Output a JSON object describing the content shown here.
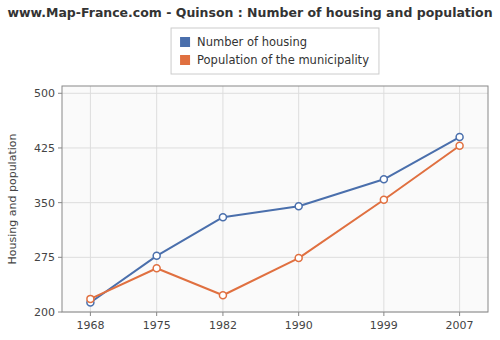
{
  "chart_data": {
    "type": "line",
    "title": "www.Map-France.com - Quinson : Number of housing and population",
    "y_label": "Housing and population",
    "x": [
      1968,
      1975,
      1982,
      1990,
      1999,
      2007
    ],
    "series": [
      {
        "name": "Number of housing",
        "color": "#4a6fac",
        "marker": "circle",
        "values": [
          213,
          277,
          330,
          345,
          382,
          440
        ]
      },
      {
        "name": "Population of the municipality",
        "color": "#e07040",
        "marker": "circle",
        "values": [
          218,
          260,
          223,
          274,
          354,
          428
        ]
      }
    ],
    "xlim": [
      1965,
      2010
    ],
    "xticks": [
      1968,
      1975,
      1982,
      1990,
      1999,
      2007
    ],
    "ylim": [
      200,
      510
    ],
    "yticks": [
      200,
      275,
      350,
      425,
      500
    ],
    "grid": true,
    "legend": "top"
  }
}
